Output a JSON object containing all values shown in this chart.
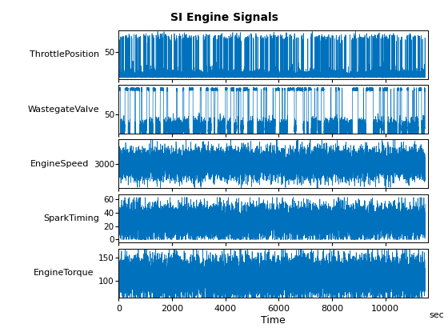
{
  "title": "SI Engine Signals",
  "title_fontsize": 10,
  "title_fontweight": "bold",
  "xlabel": "Time",
  "xlabel_unit": "sec",
  "line_color": "#0072BD",
  "line_width": 0.5,
  "x_min": 0,
  "x_max": 11600,
  "x_ticks": [
    0,
    2000,
    4000,
    6000,
    8000,
    10000
  ],
  "subplots": [
    {
      "ylabel": "ThrottlePosition",
      "yticks": [
        50
      ],
      "ytick_labels": [
        "50"
      ],
      "y_min": 10,
      "y_max": 82
    },
    {
      "ylabel": "WastegateValve",
      "yticks": [
        50
      ],
      "ytick_labels": [
        "50"
      ],
      "y_min": 15,
      "y_max": 105
    },
    {
      "ylabel": "EngineSpeed",
      "yticks": [
        3000
      ],
      "ytick_labels": [
        "3000"
      ],
      "y_min": 2100,
      "y_max": 3900
    },
    {
      "ylabel": "SparkTiming",
      "yticks": [
        0,
        20,
        40,
        60
      ],
      "ytick_labels": [
        "0",
        "20",
        "40",
        "60"
      ],
      "y_min": -5,
      "y_max": 68
    },
    {
      "ylabel": "EngineTorque",
      "yticks": [
        100,
        150
      ],
      "ytick_labels": [
        "100",
        "150"
      ],
      "y_min": 65,
      "y_max": 170
    }
  ]
}
